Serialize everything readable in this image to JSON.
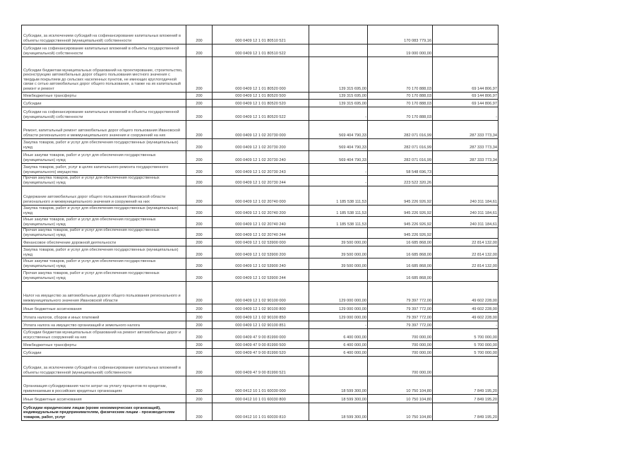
{
  "table": {
    "rows": [
      {
        "text": "Субсидии, за исключением субсидий на софинансирование капитальных вложений в объекты государственной (муниципальной) собственности",
        "code": "200",
        "kbk": "000 0409 12 1 01 80510 521",
        "plan": "",
        "done": "170 083 779,16",
        "rest": ""
      },
      {
        "text": "Субсидии на софинансирование капитальных вложений в объекты государственной (муниципальной) собственности",
        "code": "200",
        "kbk": "000 0409 12 1 01 80510 522",
        "plan": "",
        "done": "19 000 000,00",
        "rest": ""
      },
      {
        "text": "Субсидии бюджетам муниципальных образований на проектирование, строительство, реконструкцию автомобильных дорог общего пользования местного значения с твердым покрытием до сельских населенных пунктов, не имеющих круглогодичной связи с сетью автомобильных дорог общего пользования, а также на их капитальный ремонт и ремонт",
        "code": "200",
        "kbk": "000 0409 12 1 01 80520 000",
        "plan": "139 315 695,00",
        "done": "70 170 888,03",
        "rest": "69 144 806,97"
      },
      {
        "text": "Межбюджетные трансферты",
        "code": "200",
        "kbk": "000 0409 12 1 01 80520 500",
        "plan": "139 315 695,00",
        "done": "70 170 888,03",
        "rest": "69 144 806,97"
      },
      {
        "text": "Субсидии",
        "code": "200",
        "kbk": "000 0409 12 1 01 80520 520",
        "plan": "139 315 695,00",
        "done": "70 170 888,03",
        "rest": "69 144 806,97"
      },
      {
        "text": "Субсидии на софинансирование капитальных вложений в объекты государственной (муниципальной) собственности",
        "code": "200",
        "kbk": "000 0409 12 1 01 80520 522",
        "plan": "-",
        "done": "70 170 888,03",
        "rest": "-"
      },
      {
        "text": "Ремонт, капитальный ремонт автомобильных дорог общего пользования Ивановской области регионального и межмуниципального значения и сооружений на них",
        "code": "200",
        "kbk": "000 0409 12 1 02 20730 000",
        "plan": "569 404 790,33",
        "done": "282 071 016,99",
        "rest": "287 333 773,34"
      },
      {
        "text": "Закупка товаров, работ и услуг для обеспечения государственных (муниципальных) нужд",
        "code": "200",
        "kbk": "000 0409 12 1 02 20730 200",
        "plan": "569 404 790,33",
        "done": "282 071 016,99",
        "rest": "287 333 773,34"
      },
      {
        "text": "Иные закупки товаров, работ и услуг для обеспечения государственных (муниципальных) нужд",
        "code": "200",
        "kbk": "000 0409 12 1 02 20730 240",
        "plan": "569 404 790,33",
        "done": "282 071 016,99",
        "rest": "287 333 773,34"
      },
      {
        "text": "Закупка товаров, работ, услуг в целях капитального ремонта государственного (муниципального) имущества",
        "code": "200",
        "kbk": "000 0409 12 1 02 20730 243",
        "plan": "-",
        "done": "58 548 696,73",
        "rest": ""
      },
      {
        "text": "Прочая закупка товаров, работ и услуг для обеспечения государственных (муниципальных) нужд",
        "code": "200",
        "kbk": "000 0409 12 1 02 20730 244",
        "plan": "-",
        "done": "223 522 320,26",
        "rest": ""
      },
      {
        "text": "Содержание автомобильных дорог общего пользования Ивановской области регионального и межмуниципального значения и сооружений на них",
        "code": "200",
        "kbk": "000 0409 12 1 02 20740 000",
        "plan": "1 185 538 111,53",
        "done": "945 226 926,92",
        "rest": "240 311 184,61"
      },
      {
        "text": "Закупка товаров, работ и услуг для обеспечения государственных (муниципальных) нужд",
        "code": "200",
        "kbk": "000 0409 12 1 02 20740 200",
        "plan": "1 185 538 111,53",
        "done": "945 226 926,92",
        "rest": "240 311 184,61"
      },
      {
        "text": "Иные закупки товаров, работ и услуг для обеспечения государственных (муниципальных) нужд",
        "code": "200",
        "kbk": "000 0409 12 1 02 20740 240",
        "plan": "1 185 538 111,53",
        "done": "945 226 926,92",
        "rest": "240 311 184,61"
      },
      {
        "text": "Прочая закупка товаров, работ и услуг для обеспечения государственных (муниципальных) нужд",
        "code": "200",
        "kbk": "000 0409 12 1 02 20740 244",
        "plan": "",
        "done": "945 226 926,92",
        "rest": ""
      },
      {
        "text": "Финансовое обеспечение дорожной деятельности",
        "code": "200",
        "kbk": "000 0409 12 1 02 53900 000",
        "plan": "39 500 000,00",
        "done": "16 685 868,00",
        "rest": "22 814 132,00"
      },
      {
        "text": "Закупка товаров, работ и услуг для обеспечения государственных (муниципальных) нужд",
        "code": "200",
        "kbk": "000 0409 12 1 02 53900 200",
        "plan": "39 500 000,00",
        "done": "16 685 868,00",
        "rest": "22 814 132,00"
      },
      {
        "text": "Иные закупки товаров, работ и услуг для обеспечения государственных (муниципальных) нужд",
        "code": "200",
        "kbk": "000 0409 12 1 02 53900 240",
        "plan": "39 500 000,00",
        "done": "16 685 868,00",
        "rest": "22 814 132,00"
      },
      {
        "text": "Прочая закупка товаров, работ и услуг для обеспечения государственных (муниципальных) нужд",
        "code": "200",
        "kbk": "000 0409 12 1 02 53900 244",
        "plan": "",
        "done": "16 685 868,00",
        "rest": ""
      },
      {
        "text": "Налог на имущество за автомобильные дороги общего пользования регионального и межмуниципального значения Ивановской области",
        "code": "200",
        "kbk": "000 0409 12 1 02 90100 000",
        "plan": "129 000 000,00",
        "done": "79 397 772,00",
        "rest": "49 602 228,00"
      },
      {
        "text": "Иные бюджетные ассигнования",
        "code": "200",
        "kbk": "000 0409 12 1 02 90100 800",
        "plan": "129 000 000,00",
        "done": "79 397 772,00",
        "rest": "49 602 228,00"
      },
      {
        "text": "Уплата налогов, сборов и иных платежей",
        "code": "200",
        "kbk": "000 0409 12 1 02 90100 850",
        "plan": "129 000 000,00",
        "done": "79 397 772,00",
        "rest": "49 602 228,00"
      },
      {
        "text": "Уплата налога на имущество организаций и земельного налога",
        "code": "200",
        "kbk": "000 0409 12 1 02 90100 851",
        "plan": "-",
        "done": "79 397 772,00",
        "rest": "-"
      },
      {
        "text": "Субсидии бюджетам муниципальных образований на ремонт автомобильных дорог и искусственных сооружений на них",
        "code": "200",
        "kbk": "000 0409 47 9 00 81990 000",
        "plan": "6 400 000,00",
        "done": "700 000,00",
        "rest": "5 700 000,00"
      },
      {
        "text": "Межбюджетные трансферты",
        "code": "200",
        "kbk": "000 0409 47 9 00 81990 500",
        "plan": "6 400 000,00",
        "done": "700 000,00",
        "rest": "5 700 000,00"
      },
      {
        "text": "Субсидии",
        "code": "200",
        "kbk": "000 0409 47 9 00 81990 520",
        "plan": "6 400 000,00",
        "done": "700 000,00",
        "rest": "5 700 000,00"
      },
      {
        "text": "Субсидии, за исключением субсидий на софинансирование капитальных вложений в объекты государственной (муниципальной) собственности",
        "code": "200",
        "kbk": "000 0409 47 9 00 81990 521",
        "plan": "",
        "done": "700 000,00",
        "rest": ""
      },
      {
        "text": "Организация субсидирования части затрат на уплату процентов по кредитам, привлекаемым в российских кредитных организациях",
        "code": "200",
        "kbk": "000 0412 10 1 01 60030 000",
        "plan": "18 599 300,00",
        "done": "10 750 104,80",
        "rest": "7 849 195,20"
      },
      {
        "text": "Иные бюджетные ассигнования",
        "code": "200",
        "kbk": "000 0412 10 1 01 60030 800",
        "plan": "18 599 300,00",
        "done": "10 750 104,80",
        "rest": "7 849 195,20"
      },
      {
        "text": "Субсидии юридическим лицам (кроме некоммерческих организаций), индивидуальным предпринимателям, физическим лицам - производителям товаров, работ, услуг",
        "code": "200",
        "kbk": "000 0412 10 1 01 60030 810",
        "plan": "18 599 300,00",
        "done": "10 750 104,80",
        "rest": "7 849 195,20"
      }
    ]
  }
}
